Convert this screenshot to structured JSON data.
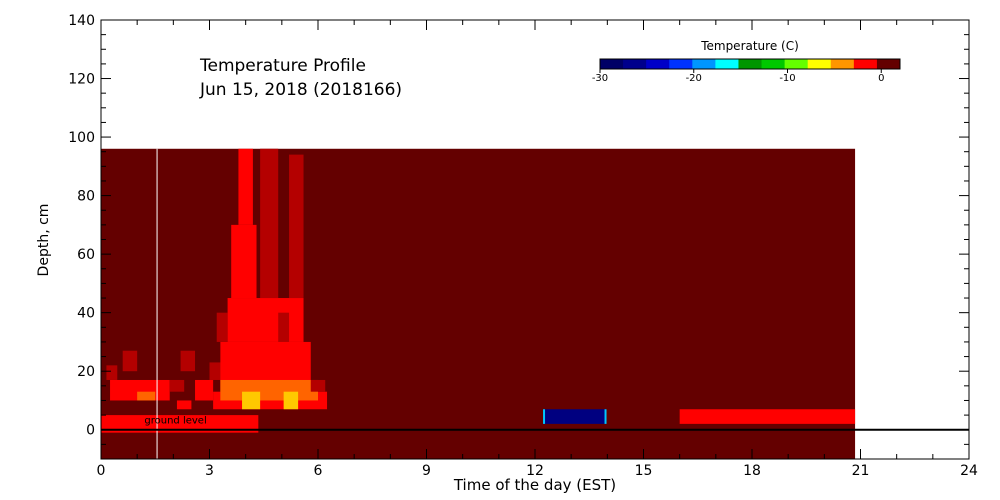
{
  "chart_data": {
    "type": "heatmap",
    "title_line1": "Temperature Profile",
    "title_line2": "Jun 15, 2018 (2018166)",
    "xlabel": "Time of the day (EST)",
    "ylabel": "Depth, cm",
    "xlim": [
      0,
      24
    ],
    "ylim": [
      -10,
      140
    ],
    "x_ticks": [
      0,
      3,
      6,
      9,
      12,
      15,
      18,
      21,
      24
    ],
    "y_ticks": [
      0,
      20,
      40,
      60,
      80,
      100,
      120,
      140
    ],
    "x_minor_step": 1,
    "y_minor_step": 5,
    "data_extent": {
      "x": [
        0,
        20.85
      ],
      "y": [
        -10,
        96
      ]
    },
    "ground_level_label": "ground level",
    "ground_level_depth": 0,
    "colorbar": {
      "label": "Temperature (C)",
      "range": [
        -30,
        2
      ],
      "ticks": [
        -30,
        -20,
        -10,
        0
      ],
      "tick_labels": [
        "-30",
        "-20",
        "-10",
        "0"
      ],
      "colors": [
        "#000066",
        "#00008c",
        "#0000c8",
        "#0032ff",
        "#0096ff",
        "#00ffff",
        "#009600",
        "#00c800",
        "#64ff00",
        "#ffff00",
        "#ff9600",
        "#ff0000",
        "#640000"
      ]
    },
    "background_color": "#640000",
    "cell_colors": {
      "warm": "#ff0000",
      "hot": "#ff6400",
      "hotter": "#ffc800",
      "maroon_light": "#b40000"
    },
    "patches": [
      {
        "x0": 0.0,
        "x1": 4.35,
        "d0": -1,
        "d1": 5,
        "color": "warm"
      },
      {
        "x0": 16.0,
        "x1": 20.85,
        "d0": 2,
        "d1": 7,
        "color": "warm"
      },
      {
        "x0": 12.25,
        "x1": 13.95,
        "d0": 2,
        "d1": 7,
        "color": "#000080"
      },
      {
        "x0": 0.25,
        "x1": 1.9,
        "d0": 10,
        "d1": 17,
        "color": "warm"
      },
      {
        "x0": 0.15,
        "x1": 0.45,
        "d0": 17,
        "d1": 22,
        "color": "maroon_light"
      },
      {
        "x0": 0.6,
        "x1": 1.0,
        "d0": 20,
        "d1": 27,
        "color": "maroon_light"
      },
      {
        "x0": 1.0,
        "x1": 1.5,
        "d0": 10,
        "d1": 13,
        "color": "hot"
      },
      {
        "x0": 1.9,
        "x1": 2.3,
        "d0": 13,
        "d1": 17,
        "color": "maroon_light"
      },
      {
        "x0": 2.1,
        "x1": 2.5,
        "d0": 7,
        "d1": 10,
        "color": "warm"
      },
      {
        "x0": 2.2,
        "x1": 2.6,
        "d0": 20,
        "d1": 27,
        "color": "maroon_light"
      },
      {
        "x0": 2.6,
        "x1": 3.1,
        "d0": 10,
        "d1": 17,
        "color": "warm"
      },
      {
        "x0": 3.0,
        "x1": 3.4,
        "d0": 17,
        "d1": 23,
        "color": "maroon_light"
      },
      {
        "x0": 3.1,
        "x1": 6.25,
        "d0": 7,
        "d1": 13,
        "color": "warm"
      },
      {
        "x0": 3.3,
        "x1": 5.8,
        "d0": 13,
        "d1": 30,
        "color": "warm"
      },
      {
        "x0": 3.5,
        "x1": 5.6,
        "d0": 30,
        "d1": 45,
        "color": "warm"
      },
      {
        "x0": 3.6,
        "x1": 4.3,
        "d0": 45,
        "d1": 70,
        "color": "warm"
      },
      {
        "x0": 3.8,
        "x1": 4.2,
        "d0": 70,
        "d1": 96,
        "color": "warm"
      },
      {
        "x0": 4.4,
        "x1": 4.9,
        "d0": 45,
        "d1": 96,
        "color": "maroon_light"
      },
      {
        "x0": 5.2,
        "x1": 5.6,
        "d0": 45,
        "d1": 94,
        "color": "maroon_light"
      },
      {
        "x0": 3.3,
        "x1": 6.0,
        "d0": 10,
        "d1": 17,
        "color": "hot"
      },
      {
        "x0": 3.9,
        "x1": 4.4,
        "d0": 7,
        "d1": 13,
        "color": "hotter"
      },
      {
        "x0": 5.05,
        "x1": 5.45,
        "d0": 7,
        "d1": 13,
        "color": "hotter"
      },
      {
        "x0": 4.9,
        "x1": 5.2,
        "d0": 30,
        "d1": 40,
        "color": "maroon_light"
      },
      {
        "x0": 3.2,
        "x1": 3.5,
        "d0": 30,
        "d1": 40,
        "color": "maroon_light"
      },
      {
        "x0": 5.8,
        "x1": 6.2,
        "d0": 13,
        "d1": 17,
        "color": "maroon_light"
      }
    ],
    "vertical_marker_time": 1.55
  }
}
